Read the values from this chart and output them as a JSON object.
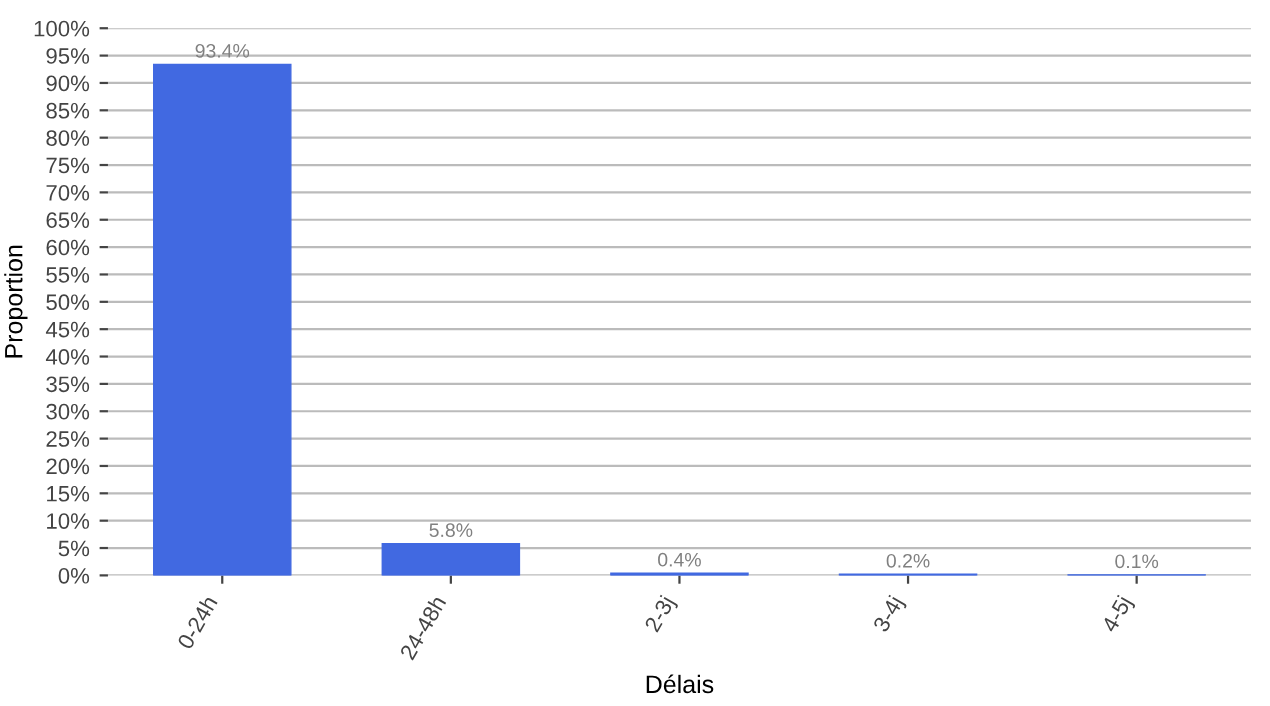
{
  "chart_data": {
    "type": "bar",
    "xlabel": "Délais",
    "ylabel": "Proportion",
    "categories": [
      "0-24h",
      "24-48h",
      "2-3j",
      "3-4j",
      "4-5j"
    ],
    "values": [
      93.4,
      5.8,
      0.4,
      0.2,
      0.1
    ],
    "value_labels": [
      "93.4%",
      "5.8%",
      "0.4%",
      "0.2%",
      "0.1%"
    ],
    "color": "#4169e1",
    "ylim": [
      0,
      100
    ],
    "yticks": [
      {
        "value": 0,
        "label": "0%"
      },
      {
        "value": 5,
        "label": "5%"
      },
      {
        "value": 10,
        "label": "10%"
      },
      {
        "value": 15,
        "label": "15%"
      },
      {
        "value": 20,
        "label": "20%"
      },
      {
        "value": 25,
        "label": "25%"
      },
      {
        "value": 30,
        "label": "30%"
      },
      {
        "value": 35,
        "label": "35%"
      },
      {
        "value": 40,
        "label": "40%"
      },
      {
        "value": 45,
        "label": "45%"
      },
      {
        "value": 50,
        "label": "50%"
      },
      {
        "value": 55,
        "label": "55%"
      },
      {
        "value": 60,
        "label": "60%"
      },
      {
        "value": 65,
        "label": "65%"
      },
      {
        "value": 70,
        "label": "70%"
      },
      {
        "value": 75,
        "label": "75%"
      },
      {
        "value": 80,
        "label": "80%"
      },
      {
        "value": 85,
        "label": "85%"
      },
      {
        "value": 90,
        "label": "90%"
      },
      {
        "value": 95,
        "label": "95%"
      },
      {
        "value": 100,
        "label": "100%"
      }
    ],
    "grid": "y"
  }
}
